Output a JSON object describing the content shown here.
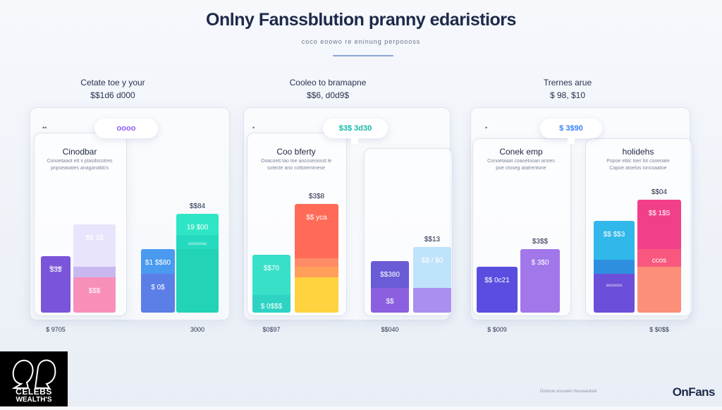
{
  "header": {
    "title": "Onlny Fanssblution pranny edaristiors",
    "subtitle": "coco eoowo re eninung perpoooss"
  },
  "groups": [
    {
      "heading": "Cetate toe y your",
      "value": "$$1d6 d000",
      "pill_text": "oooo",
      "pill_color": "#8b5cf6",
      "dot": "••"
    },
    {
      "heading": "Cooleo to bramapne",
      "value": "$$6, d0d9$",
      "pill_text": "$3$ 3d30",
      "pill_color": "#14b8a6",
      "dot": "•"
    },
    {
      "heading": "Trernes arue",
      "value": "$ 98, $10",
      "pill_text": "$ 3$90",
      "pill_color": "#3b82f6",
      "dot": "•"
    }
  ],
  "cards": [
    {
      "title": "Cinodbar",
      "desc": [
        "Conoetaaot ett s plasdocotres",
        "pnpseaoates anaganabtcs"
      ]
    },
    {
      "title": "Coo bferty",
      "desc": [
        "Ooacoett tao toe ancoseoosst le",
        "sotecte ano cottotemmese"
      ]
    },
    {
      "title": "Conek emp",
      "desc": [
        "Conoetaaat coaoetooan anoes",
        "poe ctoseg atatrentone"
      ]
    },
    {
      "title": "holidehs",
      "desc": [
        "Popoe ebtc toer lot cooeoate",
        "Capoe atoelos ioncoaatoe"
      ]
    }
  ],
  "chart_data": {
    "type": "bar",
    "title": "Onlny Fanssblution pranny edaristiors",
    "subtitle": "coco eoowo re eninung perpoooss",
    "stacked": true,
    "grid": false,
    "bars": [
      {
        "top_label": "",
        "footer": "$ 9705",
        "segments": [
          {
            "value": 80,
            "color": "#7b55d9",
            "label": "$3$",
            "sublabel": "Ooooo"
          }
        ]
      },
      {
        "top_label": "",
        "footer": "",
        "segments": [
          {
            "value": 50,
            "color": "#f78fb9",
            "label": "$$$",
            "sublabel": ""
          },
          {
            "value": 15,
            "color": "#c9b8ef",
            "label": "",
            "sublabel": ""
          },
          {
            "value": 60,
            "color": "#e8e4fb",
            "label": "$$ 3$",
            "sublabel": ""
          }
        ]
      },
      {
        "top_label": "",
        "footer": "",
        "segments": [
          {
            "value": 55,
            "color": "#5b7fe6",
            "label": "$ 0$",
            "sublabel": ""
          },
          {
            "value": 35,
            "color": "#4a9af0",
            "label": "$1 $$80",
            "sublabel": ""
          }
        ]
      },
      {
        "top_label": "$$84",
        "footer": "3000",
        "segments": [
          {
            "value": 90,
            "color": "#22d3b5",
            "label": "",
            "sublabel": ""
          },
          {
            "value": 20,
            "color": "#26dac0",
            "label": "",
            "sublabel": "uoooooas"
          },
          {
            "value": 30,
            "color": "#2ee6c6",
            "label": "19 $00",
            "sublabel": ""
          }
        ]
      },
      {
        "top_label": "",
        "footer": "$0$97",
        "segments": [
          {
            "value": 25,
            "color": "#2fd3c4",
            "label": "$ 0$$$",
            "sublabel": ""
          },
          {
            "value": 57,
            "color": "#39e0c8",
            "label": "$$70",
            "sublabel": ""
          }
        ]
      },
      {
        "top_label": "$3$8",
        "footer": "",
        "segments": [
          {
            "value": 50,
            "color": "#ffd23f",
            "label": "",
            "sublabel": ""
          },
          {
            "value": 15,
            "color": "#ff9f5a",
            "label": "",
            "sublabel": ""
          },
          {
            "value": 12,
            "color": "#ff8c66",
            "label": "",
            "sublabel": ""
          },
          {
            "value": 77,
            "color": "#ff6b57",
            "label": "$$ yca",
            "sublabel": ""
          }
        ]
      },
      {
        "top_label": "",
        "footer": "$$040",
        "segments": [
          {
            "value": 35,
            "color": "#8c5fe0",
            "label": "$$",
            "sublabel": ""
          },
          {
            "value": 38,
            "color": "#6a5bd6",
            "label": "$$380",
            "sublabel": ""
          }
        ]
      },
      {
        "top_label": "$$13",
        "footer": "",
        "segments": [
          {
            "value": 35,
            "color": "#a98ff0",
            "label": "",
            "sublabel": ""
          },
          {
            "value": 58,
            "color": "#bfe3fb",
            "label": "$$ / $0",
            "sublabel": ""
          }
        ]
      },
      {
        "top_label": "",
        "footer": "$ $009",
        "segments": [
          {
            "value": 65,
            "color": "#5a4ee0",
            "label": "$$ 0c21",
            "sublabel": ""
          }
        ]
      },
      {
        "top_label": "$3$$",
        "footer": "",
        "segments": [
          {
            "value": 90,
            "color": "#a277e9",
            "label": "$ 3$0",
            "sublabel": ""
          }
        ]
      },
      {
        "top_label": "",
        "footer": "",
        "segments": [
          {
            "value": 55,
            "color": "#6b4fd8",
            "label": "",
            "sublabel": "aooooos"
          },
          {
            "value": 20,
            "color": "#2e8fe0",
            "label": "",
            "sublabel": ""
          },
          {
            "value": 55,
            "color": "#31b8ea",
            "label": "$$ $$3",
            "sublabel": ""
          }
        ]
      },
      {
        "top_label": "$$04",
        "footer": "$ $0$$",
        "segments": [
          {
            "value": 65,
            "color": "#fb8f7a",
            "label": "",
            "sublabel": ""
          },
          {
            "value": 25,
            "color": "#f8577f",
            "label": "ccos",
            "sublabel": ""
          },
          {
            "value": 70,
            "color": "#f23f8a",
            "label": "$$ 1$5",
            "sublabel": ""
          }
        ]
      }
    ]
  },
  "brand": {
    "logo_line1": "CELEBS",
    "logo_line2": "WEALTH'S",
    "wordmark": "OnFans",
    "footnote": "Donnue ocoouen rtooceaoloet"
  }
}
